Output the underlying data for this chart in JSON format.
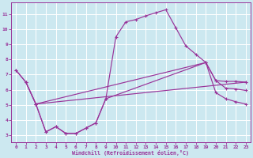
{
  "xlabel": "Windchill (Refroidissement éolien,°C)",
  "xlim": [
    -0.5,
    23.5
  ],
  "ylim": [
    2.5,
    11.8
  ],
  "yticks": [
    3,
    4,
    5,
    6,
    7,
    8,
    9,
    10,
    11
  ],
  "xticks": [
    0,
    1,
    2,
    3,
    4,
    5,
    6,
    7,
    8,
    9,
    10,
    11,
    12,
    13,
    14,
    15,
    16,
    17,
    18,
    19,
    20,
    21,
    22,
    23
  ],
  "bg_color": "#cce8f0",
  "line_color": "#993399",
  "grid_color": "#ffffff",
  "line1_x": [
    0,
    1,
    2,
    3,
    4,
    5,
    6,
    7,
    8,
    9,
    10,
    11,
    12,
    13,
    14,
    15,
    16,
    17,
    18,
    19,
    20,
    21,
    22,
    23
  ],
  "line1_y": [
    7.3,
    6.5,
    5.05,
    3.2,
    3.55,
    3.1,
    3.1,
    3.45,
    3.8,
    5.4,
    9.5,
    10.5,
    10.65,
    10.9,
    11.1,
    11.3,
    10.1,
    8.9,
    8.35,
    7.8,
    6.6,
    6.1,
    6.05,
    5.95
  ],
  "line2_x": [
    0,
    1,
    2,
    19,
    20,
    21,
    22,
    23
  ],
  "line2_y": [
    7.3,
    6.5,
    5.05,
    7.8,
    6.6,
    6.55,
    6.55,
    6.5
  ],
  "line3_x": [
    1,
    2,
    23
  ],
  "line3_y": [
    6.5,
    5.05,
    6.5
  ],
  "line4_x": [
    2,
    3,
    4,
    5,
    6,
    7,
    8,
    9,
    19,
    20,
    21,
    22,
    23
  ],
  "line4_y": [
    5.05,
    3.2,
    3.55,
    3.1,
    3.1,
    3.45,
    3.8,
    5.4,
    7.8,
    5.8,
    5.4,
    5.2,
    5.05
  ]
}
